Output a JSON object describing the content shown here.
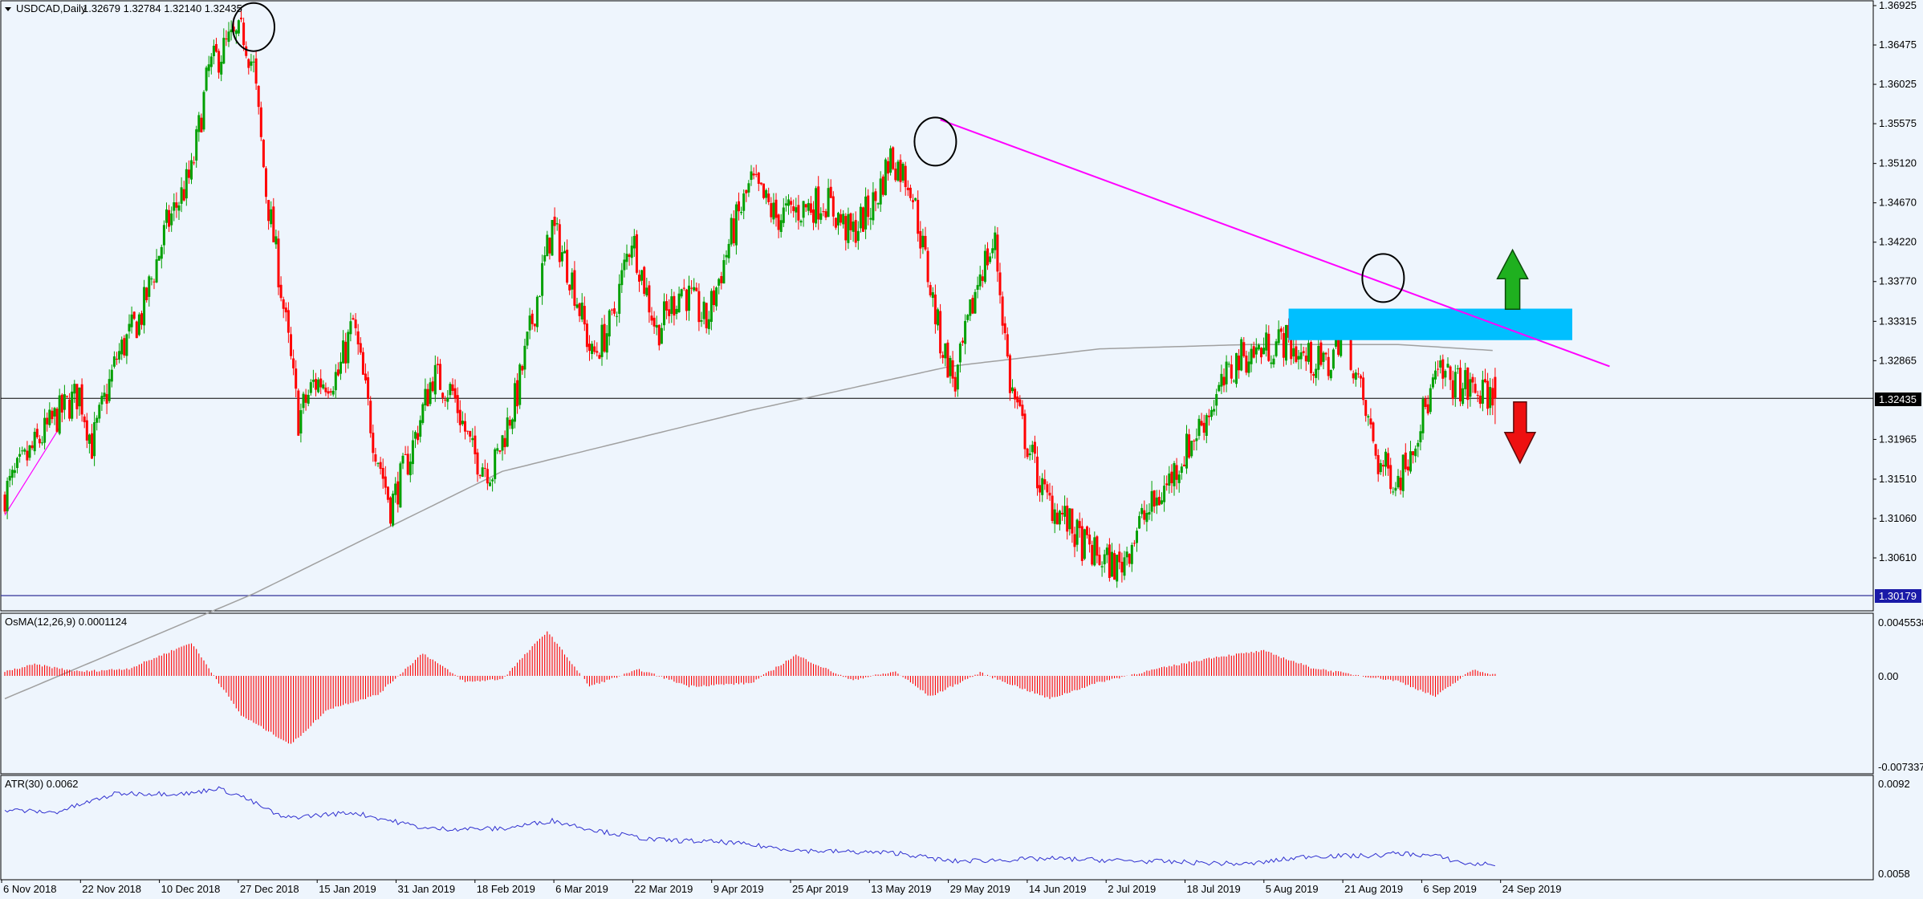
{
  "header": {
    "symbol_label": "USDCAD,Daily",
    "ohlc_label": "1.32679 1.32784 1.32140 1.32435"
  },
  "price_panel": {
    "price_ticks": [
      "1.36925",
      "1.36475",
      "1.36025",
      "1.35575",
      "1.35120",
      "1.34670",
      "1.34220",
      "1.33770",
      "1.33315",
      "1.32865",
      "1.32435",
      "1.31965",
      "1.31510",
      "1.31060",
      "1.30610",
      "1.30179"
    ],
    "current_price_label": "1.32435",
    "support_price_label": "1.30179",
    "colors": {
      "bull": "#00a000",
      "bear": "#ff0000",
      "trendline": "#ff00ff",
      "zone": "#00bfff",
      "ma": "#a0a0a0",
      "support": "#333399"
    }
  },
  "osma_panel": {
    "label": "OsMA(12,26,9) 0.0001124",
    "ticks": [
      "0.0045538",
      "0.00",
      "-0.0073377"
    ],
    "color": "#ff0000"
  },
  "atr_panel": {
    "label": "ATR(30) 0.0062",
    "ticks": [
      "0.0092",
      "0.0058"
    ],
    "color": "#3030d0"
  },
  "x_axis": {
    "labels": [
      "6 Nov 2018",
      "22 Nov 2018",
      "10 Dec 2018",
      "27 Dec 2018",
      "15 Jan 2019",
      "31 Jan 2019",
      "18 Feb 2019",
      "6 Mar 2019",
      "22 Mar 2019",
      "9 Apr 2019",
      "25 Apr 2019",
      "13 May 2019",
      "29 May 2019",
      "14 Jun 2019",
      "2 Jul 2019",
      "18 Jul 2019",
      "5 Aug 2019",
      "21 Aug 2019",
      "6 Sep 2019",
      "24 Sep 2019"
    ]
  },
  "chart_data": {
    "type": "candlestick",
    "symbol": "USDCAD",
    "timeframe": "Daily",
    "last_bar": {
      "open": 1.32679,
      "high": 1.32784,
      "low": 1.3214,
      "close": 1.32435
    },
    "close_path": [
      [
        0,
        1.3135
      ],
      [
        10,
        1.318
      ],
      [
        20,
        1.322
      ],
      [
        30,
        1.325
      ],
      [
        35,
        1.319
      ],
      [
        45,
        1.329
      ],
      [
        55,
        1.334
      ],
      [
        65,
        1.344
      ],
      [
        75,
        1.35
      ],
      [
        82,
        1.362
      ],
      [
        90,
        1.365
      ],
      [
        96,
        1.366
      ],
      [
        100,
        1.362
      ],
      [
        105,
        1.348
      ],
      [
        110,
        1.339
      ],
      [
        118,
        1.322
      ],
      [
        124,
        1.326
      ],
      [
        134,
        1.327
      ],
      [
        140,
        1.333
      ],
      [
        148,
        1.32
      ],
      [
        155,
        1.312
      ],
      [
        163,
        1.318
      ],
      [
        172,
        1.327
      ],
      [
        180,
        1.325
      ],
      [
        188,
        1.318
      ],
      [
        196,
        1.316
      ],
      [
        206,
        1.325
      ],
      [
        214,
        1.336
      ],
      [
        220,
        1.344
      ],
      [
        228,
        1.338
      ],
      [
        236,
        1.329
      ],
      [
        244,
        1.333
      ],
      [
        252,
        1.343
      ],
      [
        262,
        1.332
      ],
      [
        272,
        1.337
      ],
      [
        282,
        1.333
      ],
      [
        292,
        1.343
      ],
      [
        300,
        1.349
      ],
      [
        310,
        1.345
      ],
      [
        320,
        1.346
      ],
      [
        330,
        1.347
      ],
      [
        340,
        1.343
      ],
      [
        350,
        1.347
      ],
      [
        356,
        1.352
      ],
      [
        364,
        1.349
      ],
      [
        370,
        1.34
      ],
      [
        376,
        1.331
      ],
      [
        382,
        1.326
      ],
      [
        392,
        1.339
      ],
      [
        398,
        1.342
      ],
      [
        404,
        1.326
      ],
      [
        410,
        1.32
      ],
      [
        418,
        1.313
      ],
      [
        425,
        1.311
      ],
      [
        432,
        1.308
      ],
      [
        440,
        1.306
      ],
      [
        448,
        1.305
      ],
      [
        456,
        1.31
      ],
      [
        464,
        1.313
      ],
      [
        472,
        1.317
      ],
      [
        480,
        1.321
      ],
      [
        488,
        1.325
      ],
      [
        496,
        1.329
      ],
      [
        506,
        1.33
      ],
      [
        514,
        1.331
      ],
      [
        522,
        1.329
      ],
      [
        532,
        1.328
      ],
      [
        538,
        1.333
      ],
      [
        544,
        1.326
      ],
      [
        552,
        1.317
      ],
      [
        560,
        1.315
      ],
      [
        568,
        1.321
      ],
      [
        576,
        1.327
      ],
      [
        584,
        1.326
      ],
      [
        592,
        1.325
      ],
      [
        599,
        1.32435
      ]
    ],
    "indicators": [
      {
        "name": "MA",
        "values": [
          [
            0,
            1.29
          ],
          [
            100,
            1.302
          ],
          [
            200,
            1.316
          ],
          [
            300,
            1.323
          ],
          [
            380,
            1.328
          ],
          [
            440,
            1.33
          ],
          [
            500,
            1.3305
          ],
          [
            560,
            1.3305
          ],
          [
            599,
            1.3298
          ]
        ]
      },
      {
        "name": "OsMA(12,26,9)",
        "value": 0.0001124,
        "path": [
          [
            0,
            0.0004
          ],
          [
            12,
            0.0011
          ],
          [
            30,
            0.0004
          ],
          [
            50,
            0.0007
          ],
          [
            75,
            0.0032
          ],
          [
            95,
            -0.0038
          ],
          [
            115,
            -0.0066
          ],
          [
            130,
            -0.0032
          ],
          [
            150,
            -0.0018
          ],
          [
            168,
            0.0022
          ],
          [
            185,
            -0.0006
          ],
          [
            200,
            -0.0003
          ],
          [
            218,
            0.0043
          ],
          [
            235,
            -0.001
          ],
          [
            255,
            0.0006
          ],
          [
            275,
            -0.001
          ],
          [
            300,
            -0.0007
          ],
          [
            318,
            0.002
          ],
          [
            340,
            -0.0004
          ],
          [
            358,
            0.0004
          ],
          [
            372,
            -0.002
          ],
          [
            392,
            0.0003
          ],
          [
            420,
            -0.0022
          ],
          [
            440,
            -0.0006
          ],
          [
            460,
            0.0005
          ],
          [
            486,
            0.0018
          ],
          [
            506,
            0.0024
          ],
          [
            525,
            0.0008
          ],
          [
            540,
            0.0002
          ],
          [
            560,
            -0.0005
          ],
          [
            575,
            -0.002
          ],
          [
            590,
            0.0006
          ],
          [
            599,
            0.0001124
          ]
        ]
      },
      {
        "name": "ATR(30)",
        "value": 0.0062,
        "path": [
          [
            0,
            0.0082
          ],
          [
            20,
            0.0081
          ],
          [
            45,
            0.0088
          ],
          [
            75,
            0.0088
          ],
          [
            85,
            0.009
          ],
          [
            95,
            0.0087
          ],
          [
            112,
            0.0079
          ],
          [
            140,
            0.0081
          ],
          [
            170,
            0.0075
          ],
          [
            200,
            0.0075
          ],
          [
            220,
            0.0078
          ],
          [
            240,
            0.0074
          ],
          [
            260,
            0.0071
          ],
          [
            290,
            0.007
          ],
          [
            320,
            0.0067
          ],
          [
            360,
            0.0066
          ],
          [
            380,
            0.0063
          ],
          [
            420,
            0.0064
          ],
          [
            460,
            0.0063
          ],
          [
            500,
            0.0062
          ],
          [
            525,
            0.0065
          ],
          [
            550,
            0.0065
          ],
          [
            560,
            0.0066
          ],
          [
            575,
            0.0065
          ],
          [
            588,
            0.0062
          ],
          [
            599,
            0.0062
          ]
        ]
      }
    ],
    "annotations": {
      "resistance_zone": {
        "from": 516,
        "to": 630,
        "low": 1.331,
        "high": 1.3346
      },
      "trendline": {
        "from": [
          376,
          1.3562
        ],
        "to": [
          645,
          1.328
        ]
      },
      "circles": [
        [
          100,
          1.3668
        ],
        [
          374,
          1.3537
        ],
        [
          554,
          1.3381
        ]
      ],
      "arrows": [
        {
          "direction": "up",
          "at": 606,
          "price": 1.3382
        },
        {
          "direction": "down",
          "at": 609,
          "price": 1.3198
        }
      ],
      "horizontal_lines": [
        1.32435,
        1.30179
      ]
    }
  }
}
